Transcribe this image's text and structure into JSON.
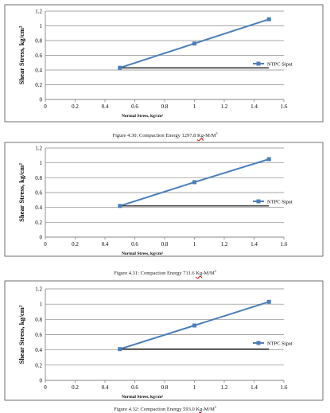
{
  "colors": {
    "series": "#4a7ebb",
    "baseline": "#000000",
    "grid": "#868686",
    "frame": "#4d4d4d"
  },
  "chart_data": [
    {
      "type": "line",
      "xlabel": "Normal Stress, kg/cm²",
      "ylabel": "Shear Stress, kg/cm²",
      "xlim": [
        0,
        1.6
      ],
      "ylim": [
        0,
        1.2
      ],
      "xticks": [
        "0",
        "0.2",
        "0.4",
        "0.6",
        "0.8",
        "1",
        "1.2",
        "1.4",
        "1.6"
      ],
      "yticks": [
        "0",
        "0.2",
        "0.4",
        "0.6",
        "0.8",
        "1",
        "1.2"
      ],
      "grid": "horizontal",
      "legend_position": "right",
      "series": [
        {
          "name": "NTPC Sipat",
          "x": [
            0.5,
            1.0,
            1.5
          ],
          "y": [
            0.43,
            0.76,
            1.09
          ]
        }
      ],
      "reference_line": {
        "x": [
          0.5,
          1.5
        ],
        "y": [
          0.43,
          0.43
        ]
      },
      "caption": {
        "prefix": "Figure 4.30: Compaction Energy 1297.8 ",
        "unit_a": "Kg",
        "unit_b": "-M/M",
        "exp": "3"
      }
    },
    {
      "type": "line",
      "xlabel": "Normal Stress, kg/cm²",
      "ylabel": "Shear Stress, kg/cm²",
      "xlim": [
        0,
        1.6
      ],
      "ylim": [
        0,
        1.2
      ],
      "xticks": [
        "0",
        "0.2",
        "0.4",
        "0.6",
        "0.8",
        "1",
        "1.2",
        "1.4",
        "1.6"
      ],
      "yticks": [
        "0",
        "0.2",
        "0.4",
        "0.6",
        "0.8",
        "1",
        "1.2"
      ],
      "grid": "horizontal",
      "legend_position": "right",
      "series": [
        {
          "name": "NTPC Sipat",
          "x": [
            0.5,
            1.0,
            1.5
          ],
          "y": [
            0.42,
            0.74,
            1.05
          ]
        }
      ],
      "reference_line": {
        "x": [
          0.5,
          1.5
        ],
        "y": [
          0.42,
          0.42
        ]
      },
      "caption": {
        "prefix": "Figure 4.31: Compaction Energy 711.6 ",
        "unit_a": "Kg",
        "unit_b": "-M/M",
        "exp": "3"
      }
    },
    {
      "type": "line",
      "xlabel": "Normal Stress, kg/cm²",
      "ylabel": "Shear Stress, kg/cm²",
      "xlim": [
        0,
        1.6
      ],
      "ylim": [
        0,
        1.2
      ],
      "xticks": [
        "0",
        "0.2",
        "0.4",
        "0.6",
        "0.8",
        "1",
        "1.2",
        "1.4",
        "1.6"
      ],
      "yticks": [
        "0",
        "0.2",
        "0.4",
        "0.6",
        "0.8",
        "1",
        "1.2"
      ],
      "grid": "horizontal",
      "legend_position": "right",
      "series": [
        {
          "name": "NTPC Sipat",
          "x": [
            0.5,
            1.0,
            1.5
          ],
          "y": [
            0.41,
            0.72,
            1.03
          ]
        }
      ],
      "reference_line": {
        "x": [
          0.5,
          1.5
        ],
        "y": [
          0.41,
          0.41
        ]
      },
      "caption": {
        "prefix": "Figure 4.32: Compaction Energy 593.0 ",
        "unit_a": "Kg",
        "unit_b": "-M/M",
        "exp": "3"
      }
    }
  ]
}
